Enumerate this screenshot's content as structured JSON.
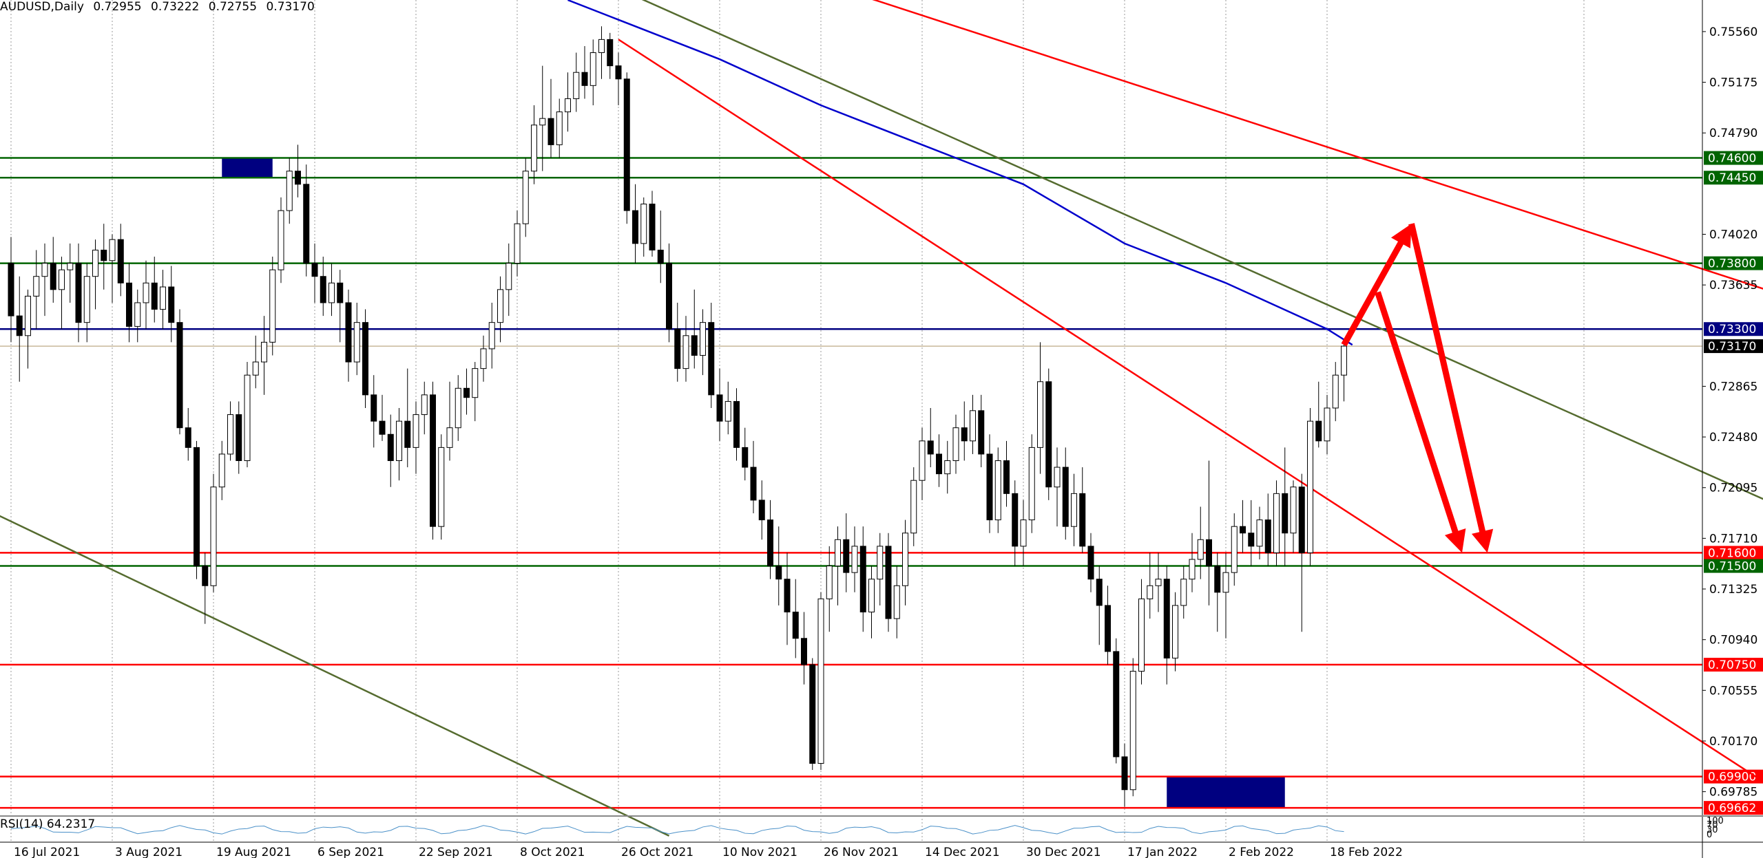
{
  "header": {
    "symbol": "AUDUSD,Daily",
    "open": "0.72955",
    "high": "0.73222",
    "low": "0.72755",
    "close": "0.73170"
  },
  "rsi_label": "RSI(14) 64.2317",
  "rsi_scale": [
    "100",
    "70",
    "30",
    "0"
  ],
  "colors": {
    "bull_candle": "#ffffff",
    "bear_candle": "#000000",
    "green_level": "#006400",
    "red_level": "#ff0000",
    "blue_level": "#000080",
    "ma": "#0000cc",
    "olive_trend": "#556b2f",
    "arrow": "#ff0000",
    "zone_top": "#0000ff",
    "zone_bottom": "#000080"
  },
  "chart_data": {
    "type": "candlestick",
    "symbol": "AUDUSD",
    "timeframe": "Daily",
    "ylim": [
      0.696,
      0.758
    ],
    "price_ticks": [
      "0.75560",
      "0.75175",
      "0.74790",
      "0.74020",
      "0.73635",
      "0.72865",
      "0.72480",
      "0.72095",
      "0.71710",
      "0.71325",
      "0.70940",
      "0.70555",
      "0.70170",
      "0.69785"
    ],
    "date_ticks": [
      {
        "label": "16 Jul 2021",
        "i": 0
      },
      {
        "label": "3 Aug 2021",
        "i": 12
      },
      {
        "label": "19 Aug 2021",
        "i": 24
      },
      {
        "label": "6 Sep 2021",
        "i": 36
      },
      {
        "label": "22 Sep 2021",
        "i": 48
      },
      {
        "label": "8 Oct 2021",
        "i": 60
      },
      {
        "label": "26 Oct 2021",
        "i": 72
      },
      {
        "label": "10 Nov 2021",
        "i": 84
      },
      {
        "label": "26 Nov 2021",
        "i": 96
      },
      {
        "label": "14 Dec 2021",
        "i": 108
      },
      {
        "label": "30 Dec 2021",
        "i": 120
      },
      {
        "label": "17 Jan 2022",
        "i": 132
      },
      {
        "label": "2 Feb 2022",
        "i": 144
      },
      {
        "label": "18 Feb 2022",
        "i": 156
      }
    ],
    "levels": [
      {
        "value": "0.74600",
        "price": 0.746,
        "color": "green"
      },
      {
        "value": "0.74450",
        "price": 0.7445,
        "color": "green"
      },
      {
        "value": "0.73800",
        "price": 0.738,
        "color": "green"
      },
      {
        "value": "0.73300",
        "price": 0.733,
        "color": "blue"
      },
      {
        "value": "0.71600",
        "price": 0.716,
        "color": "red"
      },
      {
        "value": "0.71500",
        "price": 0.715,
        "color": "green"
      },
      {
        "value": "0.70750",
        "price": 0.7075,
        "color": "red"
      },
      {
        "value": "0.69900",
        "price": 0.699,
        "color": "red"
      },
      {
        "value": "0.69662",
        "price": 0.69662,
        "color": "red"
      }
    ],
    "current_price": {
      "value": "0.73170",
      "price": 0.7317
    },
    "candles_ohlc": [
      [
        0.738,
        0.74,
        0.732,
        0.734
      ],
      [
        0.734,
        0.737,
        0.729,
        0.7325
      ],
      [
        0.7325,
        0.736,
        0.73,
        0.7355
      ],
      [
        0.7355,
        0.739,
        0.733,
        0.737
      ],
      [
        0.737,
        0.7395,
        0.734,
        0.738
      ],
      [
        0.738,
        0.74,
        0.735,
        0.736
      ],
      [
        0.736,
        0.7385,
        0.733,
        0.7375
      ],
      [
        0.7375,
        0.7395,
        0.735,
        0.738
      ],
      [
        0.738,
        0.7395,
        0.732,
        0.7335
      ],
      [
        0.7335,
        0.738,
        0.732,
        0.737
      ],
      [
        0.737,
        0.7398,
        0.7345,
        0.739
      ],
      [
        0.739,
        0.741,
        0.736,
        0.7382
      ],
      [
        0.7382,
        0.7402,
        0.735,
        0.7398
      ],
      [
        0.7398,
        0.741,
        0.7355,
        0.7365
      ],
      [
        0.7365,
        0.738,
        0.732,
        0.7332
      ],
      [
        0.7332,
        0.736,
        0.732,
        0.735
      ],
      [
        0.735,
        0.7382,
        0.733,
        0.7365
      ],
      [
        0.7365,
        0.7385,
        0.7335,
        0.7345
      ],
      [
        0.7345,
        0.7375,
        0.733,
        0.7362
      ],
      [
        0.7362,
        0.7378,
        0.732,
        0.7335
      ],
      [
        0.7335,
        0.7345,
        0.725,
        0.7255
      ],
      [
        0.7255,
        0.727,
        0.723,
        0.724
      ],
      [
        0.724,
        0.7245,
        0.714,
        0.715
      ],
      [
        0.715,
        0.716,
        0.7106,
        0.7135
      ],
      [
        0.7135,
        0.722,
        0.713,
        0.721
      ],
      [
        0.721,
        0.7245,
        0.72,
        0.7235
      ],
      [
        0.7235,
        0.7275,
        0.723,
        0.7265
      ],
      [
        0.7265,
        0.7275,
        0.722,
        0.723
      ],
      [
        0.723,
        0.7305,
        0.7225,
        0.7295
      ],
      [
        0.7295,
        0.7325,
        0.7285,
        0.7305
      ],
      [
        0.7305,
        0.734,
        0.728,
        0.732
      ],
      [
        0.732,
        0.7385,
        0.731,
        0.7375
      ],
      [
        0.7375,
        0.743,
        0.7365,
        0.742
      ],
      [
        0.742,
        0.746,
        0.741,
        0.745
      ],
      [
        0.745,
        0.747,
        0.743,
        0.744
      ],
      [
        0.744,
        0.7455,
        0.737,
        0.738
      ],
      [
        0.738,
        0.7395,
        0.735,
        0.737
      ],
      [
        0.737,
        0.7385,
        0.734,
        0.735
      ],
      [
        0.735,
        0.738,
        0.734,
        0.7365
      ],
      [
        0.7365,
        0.7375,
        0.732,
        0.735
      ],
      [
        0.735,
        0.736,
        0.729,
        0.7305
      ],
      [
        0.7305,
        0.735,
        0.7295,
        0.7335
      ],
      [
        0.7335,
        0.7345,
        0.727,
        0.728
      ],
      [
        0.728,
        0.7295,
        0.724,
        0.726
      ],
      [
        0.726,
        0.728,
        0.7245,
        0.725
      ],
      [
        0.725,
        0.7265,
        0.721,
        0.723
      ],
      [
        0.723,
        0.727,
        0.7215,
        0.726
      ],
      [
        0.726,
        0.73,
        0.7225,
        0.724
      ],
      [
        0.724,
        0.7275,
        0.722,
        0.7265
      ],
      [
        0.7265,
        0.729,
        0.725,
        0.728
      ],
      [
        0.728,
        0.729,
        0.717,
        0.718
      ],
      [
        0.718,
        0.725,
        0.717,
        0.724
      ],
      [
        0.724,
        0.729,
        0.723,
        0.7255
      ],
      [
        0.7255,
        0.7295,
        0.7245,
        0.7285
      ],
      [
        0.7285,
        0.73,
        0.7265,
        0.7278
      ],
      [
        0.7278,
        0.7305,
        0.726,
        0.73
      ],
      [
        0.73,
        0.7325,
        0.729,
        0.7315
      ],
      [
        0.7315,
        0.735,
        0.73,
        0.7335
      ],
      [
        0.7335,
        0.737,
        0.732,
        0.736
      ],
      [
        0.736,
        0.7395,
        0.734,
        0.738
      ],
      [
        0.738,
        0.742,
        0.737,
        0.741
      ],
      [
        0.741,
        0.746,
        0.74,
        0.745
      ],
      [
        0.745,
        0.75,
        0.744,
        0.7485
      ],
      [
        0.7485,
        0.753,
        0.745,
        0.749
      ],
      [
        0.749,
        0.752,
        0.746,
        0.747
      ],
      [
        0.747,
        0.7505,
        0.746,
        0.7495
      ],
      [
        0.7495,
        0.7525,
        0.748,
        0.7505
      ],
      [
        0.7505,
        0.754,
        0.7495,
        0.7525
      ],
      [
        0.7525,
        0.7545,
        0.7505,
        0.7515
      ],
      [
        0.7515,
        0.755,
        0.75,
        0.754
      ],
      [
        0.754,
        0.756,
        0.752,
        0.755
      ],
      [
        0.755,
        0.7555,
        0.752,
        0.753
      ],
      [
        0.753,
        0.754,
        0.75,
        0.752
      ],
      [
        0.752,
        0.7525,
        0.741,
        0.742
      ],
      [
        0.742,
        0.744,
        0.738,
        0.7395
      ],
      [
        0.7395,
        0.743,
        0.7385,
        0.7425
      ],
      [
        0.7425,
        0.7435,
        0.7385,
        0.739
      ],
      [
        0.739,
        0.742,
        0.7365,
        0.738
      ],
      [
        0.738,
        0.7395,
        0.732,
        0.733
      ],
      [
        0.733,
        0.735,
        0.729,
        0.73
      ],
      [
        0.73,
        0.734,
        0.729,
        0.7325
      ],
      [
        0.7325,
        0.736,
        0.73,
        0.731
      ],
      [
        0.731,
        0.7345,
        0.7295,
        0.7335
      ],
      [
        0.7335,
        0.735,
        0.727,
        0.728
      ],
      [
        0.728,
        0.73,
        0.7245,
        0.726
      ],
      [
        0.726,
        0.729,
        0.725,
        0.7275
      ],
      [
        0.7275,
        0.7285,
        0.723,
        0.724
      ],
      [
        0.724,
        0.7255,
        0.7215,
        0.7225
      ],
      [
        0.7225,
        0.7245,
        0.719,
        0.72
      ],
      [
        0.72,
        0.7215,
        0.717,
        0.7185
      ],
      [
        0.7185,
        0.72,
        0.714,
        0.715
      ],
      [
        0.715,
        0.718,
        0.712,
        0.714
      ],
      [
        0.714,
        0.716,
        0.709,
        0.7115
      ],
      [
        0.7115,
        0.714,
        0.708,
        0.7095
      ],
      [
        0.7095,
        0.7115,
        0.706,
        0.7075
      ],
      [
        0.7075,
        0.708,
        0.6995,
        0.7
      ],
      [
        0.7,
        0.713,
        0.6995,
        0.7125
      ],
      [
        0.7125,
        0.7165,
        0.71,
        0.715
      ],
      [
        0.715,
        0.718,
        0.712,
        0.717
      ],
      [
        0.717,
        0.719,
        0.713,
        0.7145
      ],
      [
        0.7145,
        0.718,
        0.713,
        0.7165
      ],
      [
        0.7165,
        0.718,
        0.71,
        0.7115
      ],
      [
        0.7115,
        0.715,
        0.7095,
        0.714
      ],
      [
        0.714,
        0.7175,
        0.712,
        0.7165
      ],
      [
        0.7165,
        0.7175,
        0.71,
        0.711
      ],
      [
        0.711,
        0.715,
        0.7095,
        0.7135
      ],
      [
        0.7135,
        0.7185,
        0.712,
        0.7175
      ],
      [
        0.7175,
        0.7225,
        0.7165,
        0.7215
      ],
      [
        0.7215,
        0.7255,
        0.72,
        0.7245
      ],
      [
        0.7245,
        0.727,
        0.7225,
        0.7235
      ],
      [
        0.7235,
        0.725,
        0.721,
        0.722
      ],
      [
        0.722,
        0.7245,
        0.7205,
        0.723
      ],
      [
        0.723,
        0.7265,
        0.722,
        0.7255
      ],
      [
        0.7255,
        0.7275,
        0.723,
        0.7245
      ],
      [
        0.7245,
        0.728,
        0.7235,
        0.7268
      ],
      [
        0.7268,
        0.728,
        0.7225,
        0.7235
      ],
      [
        0.7235,
        0.725,
        0.7175,
        0.7185
      ],
      [
        0.7185,
        0.724,
        0.7175,
        0.723
      ],
      [
        0.723,
        0.7245,
        0.7195,
        0.7205
      ],
      [
        0.7205,
        0.7215,
        0.715,
        0.7165
      ],
      [
        0.7165,
        0.72,
        0.715,
        0.7185
      ],
      [
        0.7185,
        0.725,
        0.7175,
        0.724
      ],
      [
        0.724,
        0.732,
        0.722,
        0.729
      ],
      [
        0.729,
        0.73,
        0.72,
        0.721
      ],
      [
        0.721,
        0.724,
        0.718,
        0.7225
      ],
      [
        0.7225,
        0.724,
        0.717,
        0.718
      ],
      [
        0.718,
        0.722,
        0.7165,
        0.7205
      ],
      [
        0.7205,
        0.7225,
        0.716,
        0.7165
      ],
      [
        0.7165,
        0.7175,
        0.713,
        0.714
      ],
      [
        0.714,
        0.715,
        0.709,
        0.712
      ],
      [
        0.712,
        0.7135,
        0.7075,
        0.7085
      ],
      [
        0.7085,
        0.7095,
        0.7,
        0.7005
      ],
      [
        0.7005,
        0.7015,
        0.6967,
        0.698
      ],
      [
        0.698,
        0.708,
        0.6975,
        0.707
      ],
      [
        0.707,
        0.714,
        0.706,
        0.7125
      ],
      [
        0.7125,
        0.716,
        0.711,
        0.7135
      ],
      [
        0.7135,
        0.716,
        0.7115,
        0.714
      ],
      [
        0.714,
        0.715,
        0.706,
        0.708
      ],
      [
        0.708,
        0.713,
        0.707,
        0.712
      ],
      [
        0.712,
        0.715,
        0.711,
        0.714
      ],
      [
        0.714,
        0.7175,
        0.713,
        0.7155
      ],
      [
        0.7155,
        0.7195,
        0.714,
        0.717
      ],
      [
        0.717,
        0.723,
        0.712,
        0.715
      ],
      [
        0.715,
        0.716,
        0.71,
        0.713
      ],
      [
        0.713,
        0.716,
        0.7095,
        0.7145
      ],
      [
        0.7145,
        0.719,
        0.7135,
        0.718
      ],
      [
        0.718,
        0.72,
        0.716,
        0.7175
      ],
      [
        0.7175,
        0.72,
        0.715,
        0.7165
      ],
      [
        0.7165,
        0.7195,
        0.7155,
        0.7185
      ],
      [
        0.7185,
        0.7205,
        0.715,
        0.716
      ],
      [
        0.716,
        0.7215,
        0.715,
        0.7205
      ],
      [
        0.7205,
        0.724,
        0.715,
        0.7175
      ],
      [
        0.7175,
        0.7215,
        0.716,
        0.721
      ],
      [
        0.721,
        0.722,
        0.71,
        0.716
      ],
      [
        0.716,
        0.727,
        0.715,
        0.726
      ],
      [
        0.726,
        0.729,
        0.724,
        0.7245
      ],
      [
        0.7245,
        0.728,
        0.7235,
        0.727
      ],
      [
        0.727,
        0.7305,
        0.726,
        0.7295
      ],
      [
        0.7295,
        0.7322,
        0.7275,
        0.7317
      ]
    ],
    "moving_average": [
      [
        66,
        0.758
      ],
      [
        72,
        0.7565
      ],
      [
        84,
        0.7535
      ],
      [
        96,
        0.75
      ],
      [
        108,
        0.747
      ],
      [
        120,
        0.744
      ],
      [
        132,
        0.7395
      ],
      [
        144,
        0.7365
      ],
      [
        156,
        0.733
      ],
      [
        159,
        0.7318
      ]
    ],
    "trendlines": [
      {
        "color": "red",
        "from": [
          72,
          0.755
        ],
        "to": [
          208,
          0.6985
        ]
      },
      {
        "color": "red",
        "from": [
          88,
          0.761
        ],
        "to": [
          208,
          0.736
        ]
      },
      {
        "color": "olive",
        "from": [
          68,
          0.76
        ],
        "to": [
          208,
          0.72
        ]
      },
      {
        "color": "olive",
        "from": [
          -2,
          0.719
        ],
        "to": [
          78,
          0.6945
        ]
      }
    ],
    "projection_arrows": [
      [
        [
          158,
          0.7318
        ],
        [
          166,
          0.741
        ],
        [
          175,
          0.716
        ]
      ],
      [
        [
          162,
          0.7358
        ],
        [
          172,
          0.716
        ]
      ]
    ],
    "zones": [
      {
        "color": "blue",
        "from": [
          25,
          0.746
        ],
        "to": [
          31,
          0.7445
        ]
      },
      {
        "color": "navy",
        "from": [
          137,
          0.699
        ],
        "to": [
          151,
          0.69662
        ]
      }
    ]
  }
}
